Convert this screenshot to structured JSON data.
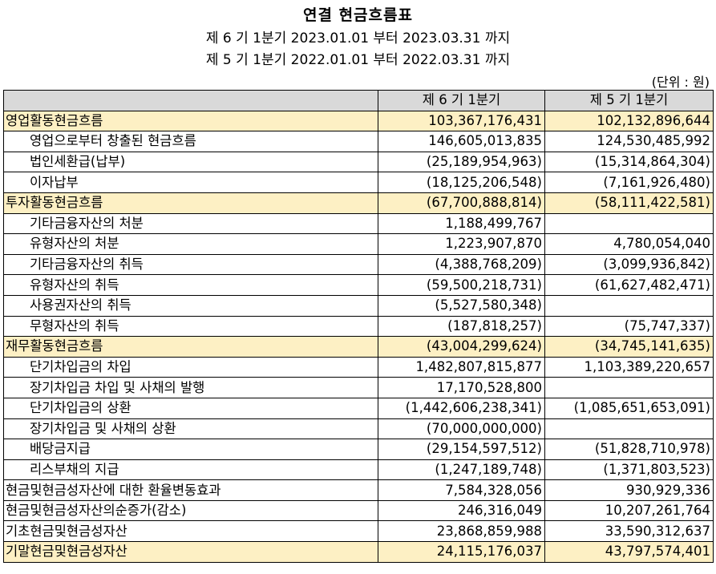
{
  "header": {
    "title": "연결 현금흐름표",
    "period_current": "제 6 기 1분기 2023.01.01 부터 2023.03.31 까지",
    "period_prior": "제 5 기 1분기 2022.01.01 부터 2022.03.31 까지",
    "unit": "(단위 : 원)"
  },
  "table": {
    "columns": [
      "",
      "제 6 기 1분기",
      "제 5 기 1분기"
    ],
    "rows": [
      {
        "label": "영업활동현금흐름",
        "cur": "103,367,176,431",
        "prev": "102,132,896,644"
      },
      {
        "label": "영업으로부터 창출된 현금흐름",
        "cur": "146,605,013,835",
        "prev": "124,530,485,992"
      },
      {
        "label": "법인세환급(납부)",
        "cur": "(25,189,954,963)",
        "prev": "(15,314,864,304)"
      },
      {
        "label": "이자납부",
        "cur": "(18,125,206,548)",
        "prev": "(7,161,926,480)"
      },
      {
        "label": "투자활동현금흐름",
        "cur": "(67,700,888,814)",
        "prev": "(58,111,422,581)"
      },
      {
        "label": "기타금융자산의 처분",
        "cur": "1,188,499,767",
        "prev": ""
      },
      {
        "label": "유형자산의 처분",
        "cur": "1,223,907,870",
        "prev": "4,780,054,040"
      },
      {
        "label": "기타금융자산의 취득",
        "cur": "(4,388,768,209)",
        "prev": "(3,099,936,842)"
      },
      {
        "label": "유형자산의 취득",
        "cur": "(59,500,218,731)",
        "prev": "(61,627,482,471)"
      },
      {
        "label": "사용권자산의 취득",
        "cur": "(5,527,580,348)",
        "prev": ""
      },
      {
        "label": "무형자산의 취득",
        "cur": "(187,818,257)",
        "prev": "(75,747,337)"
      },
      {
        "label": "재무활동현금흐름",
        "cur": "(43,004,299,624)",
        "prev": "(34,745,141,635)"
      },
      {
        "label": "단기차입금의 차입",
        "cur": "1,482,807,815,877",
        "prev": "1,103,389,220,657"
      },
      {
        "label": "장기차입금 차입 및 사채의 발행",
        "cur": "17,170,528,800",
        "prev": ""
      },
      {
        "label": "단기차입금의 상환",
        "cur": "(1,442,606,238,341)",
        "prev": "(1,085,651,653,091)"
      },
      {
        "label": "장기차입금 및 사채의 상환",
        "cur": "(70,000,000,000)",
        "prev": ""
      },
      {
        "label": "배당금지급",
        "cur": "(29,154,597,512)",
        "prev": "(51,828,710,978)"
      },
      {
        "label": "리스부채의 지급",
        "cur": "(1,247,189,748)",
        "prev": "(1,371,803,523)"
      },
      {
        "label": "현금및현금성자산에 대한 환율변동효과",
        "cur": "7,584,328,056",
        "prev": "930,929,336"
      },
      {
        "label": "현금및현금성자산의순증가(감소)",
        "cur": "246,316,049",
        "prev": "10,207,261,764"
      },
      {
        "label": "기초현금및현금성자산",
        "cur": "23,868,859,988",
        "prev": "33,590,312,637"
      },
      {
        "label": "기말현금및현금성자산",
        "cur": "24,115,176,037",
        "prev": "43,797,574,401"
      }
    ]
  }
}
